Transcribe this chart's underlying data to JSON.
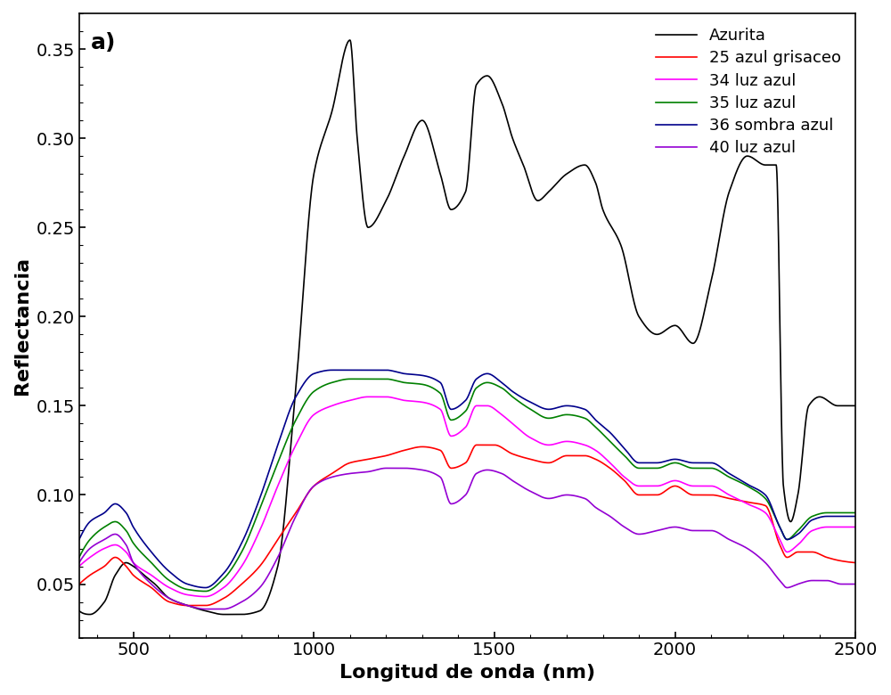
{
  "title": "a)",
  "xlabel": "Longitud de onda (nm)",
  "ylabel": "Reflectancia",
  "xlim": [
    350,
    2500
  ],
  "ylim": [
    0.02,
    0.37
  ],
  "yticks": [
    0.05,
    0.1,
    0.15,
    0.2,
    0.25,
    0.3,
    0.35
  ],
  "xticks": [
    500,
    1000,
    1500,
    2000,
    2500
  ],
  "series": [
    {
      "label": "Azurita",
      "color": "#000000"
    },
    {
      "label": "25 azul grisaceo",
      "color": "#ff0000"
    },
    {
      "label": "34 luz azul",
      "color": "#ff00ff"
    },
    {
      "label": "35 luz azul",
      "color": "#008000"
    },
    {
      "label": "36 sombra azul",
      "color": "#00008b"
    },
    {
      "label": "40 luz azul",
      "color": "#9400d3"
    }
  ],
  "legend_loc": "upper right",
  "figsize": [
    10.0,
    7.8
  ],
  "dpi": 100
}
